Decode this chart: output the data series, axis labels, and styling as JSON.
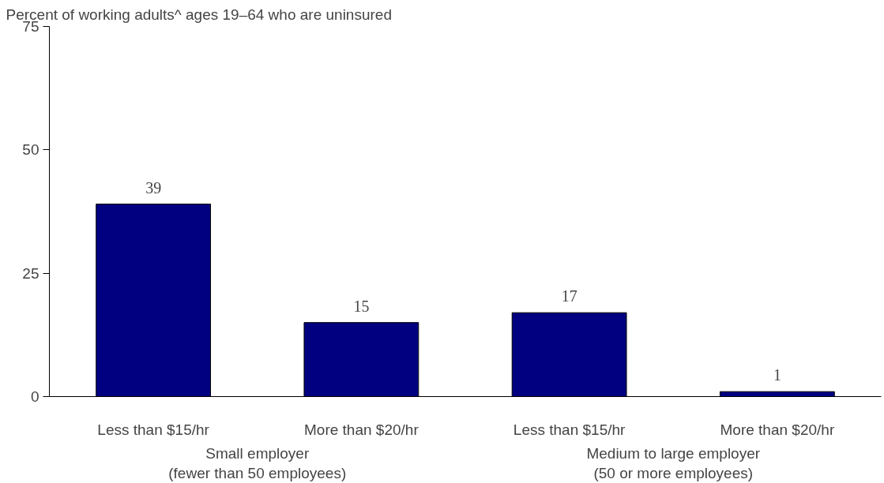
{
  "chart_data": {
    "type": "bar",
    "title": "Percent of working adults^ ages 19–64 who are uninsured",
    "categories": [
      "Less than $15/hr",
      "More than $20/hr",
      "Less than $15/hr",
      "More than $20/hr"
    ],
    "values": [
      39,
      15,
      17,
      1
    ],
    "color": "#000080",
    "ylim": [
      0,
      75
    ],
    "yticks": [
      0,
      25,
      50,
      75
    ],
    "grid": false,
    "data_labels": true,
    "annotations": [
      "Small employer\n(fewer than 50 employees)",
      "Medium to large employer\n(50 or more employees)"
    ]
  }
}
